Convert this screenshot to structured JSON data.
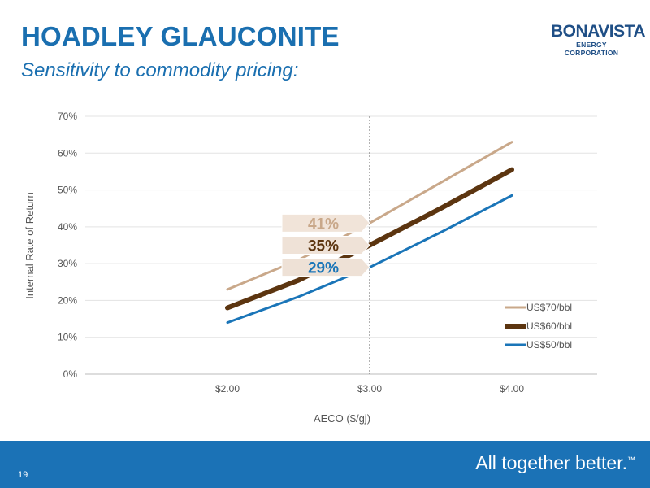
{
  "header": {
    "title": "HOADLEY GLAUCONITE",
    "subtitle": "Sensitivity to commodity pricing:"
  },
  "logo": {
    "name": "BONAVISTA",
    "tagline": "ENERGY CORPORATION"
  },
  "footer": {
    "page_number": "19",
    "tagline": "All together better.",
    "trademark": "™"
  },
  "colors": {
    "brand_blue": "#1a6fb0",
    "footer_blue": "#1b72b6"
  },
  "chart_data": {
    "type": "line",
    "xlabel": "AECO ($/gj)",
    "ylabel": "Internal Rate of Return",
    "xlim": [
      1.0,
      4.6
    ],
    "ylim": [
      0,
      70
    ],
    "x_ticks": [
      {
        "value": 2.0,
        "label": "$2.00"
      },
      {
        "value": 3.0,
        "label": "$3.00"
      },
      {
        "value": 4.0,
        "label": "$4.00"
      }
    ],
    "y_ticks": [
      {
        "value": 0,
        "label": "0%"
      },
      {
        "value": 10,
        "label": "10%"
      },
      {
        "value": 20,
        "label": "20%"
      },
      {
        "value": 30,
        "label": "30%"
      },
      {
        "value": 40,
        "label": "40%"
      },
      {
        "value": 50,
        "label": "50%"
      },
      {
        "value": 60,
        "label": "60%"
      },
      {
        "value": 70,
        "label": "70%"
      }
    ],
    "grid": "horizontal",
    "legend": "bottom-right",
    "reference_line": {
      "x": 3.0,
      "style": "dotted"
    },
    "series": [
      {
        "name": "US$70/bbl",
        "color": "#c9a88a",
        "width": 3,
        "points": [
          [
            2.0,
            23
          ],
          [
            2.5,
            31
          ],
          [
            3.0,
            41
          ],
          [
            3.5,
            52
          ],
          [
            4.0,
            63
          ]
        ]
      },
      {
        "name": "US$60/bbl",
        "color": "#5c3510",
        "width": 6,
        "points": [
          [
            2.0,
            18
          ],
          [
            2.5,
            25.5
          ],
          [
            3.0,
            35
          ],
          [
            3.5,
            45
          ],
          [
            4.0,
            55.5
          ]
        ]
      },
      {
        "name": "US$50/bbl",
        "color": "#1a75b8",
        "width": 3,
        "points": [
          [
            2.0,
            14
          ],
          [
            2.5,
            21
          ],
          [
            3.0,
            29
          ],
          [
            3.5,
            38.5
          ],
          [
            4.0,
            48.5
          ]
        ]
      }
    ],
    "callouts": [
      {
        "label": "41%",
        "y": 41,
        "color": "#c9a88a",
        "bg": "#f1e4d9"
      },
      {
        "label": "35%",
        "y": 35,
        "color": "#5c3510",
        "bg": "#efe2d7"
      },
      {
        "label": "29%",
        "y": 29,
        "color": "#1a75b8",
        "bg": "#eee1d6"
      }
    ]
  }
}
